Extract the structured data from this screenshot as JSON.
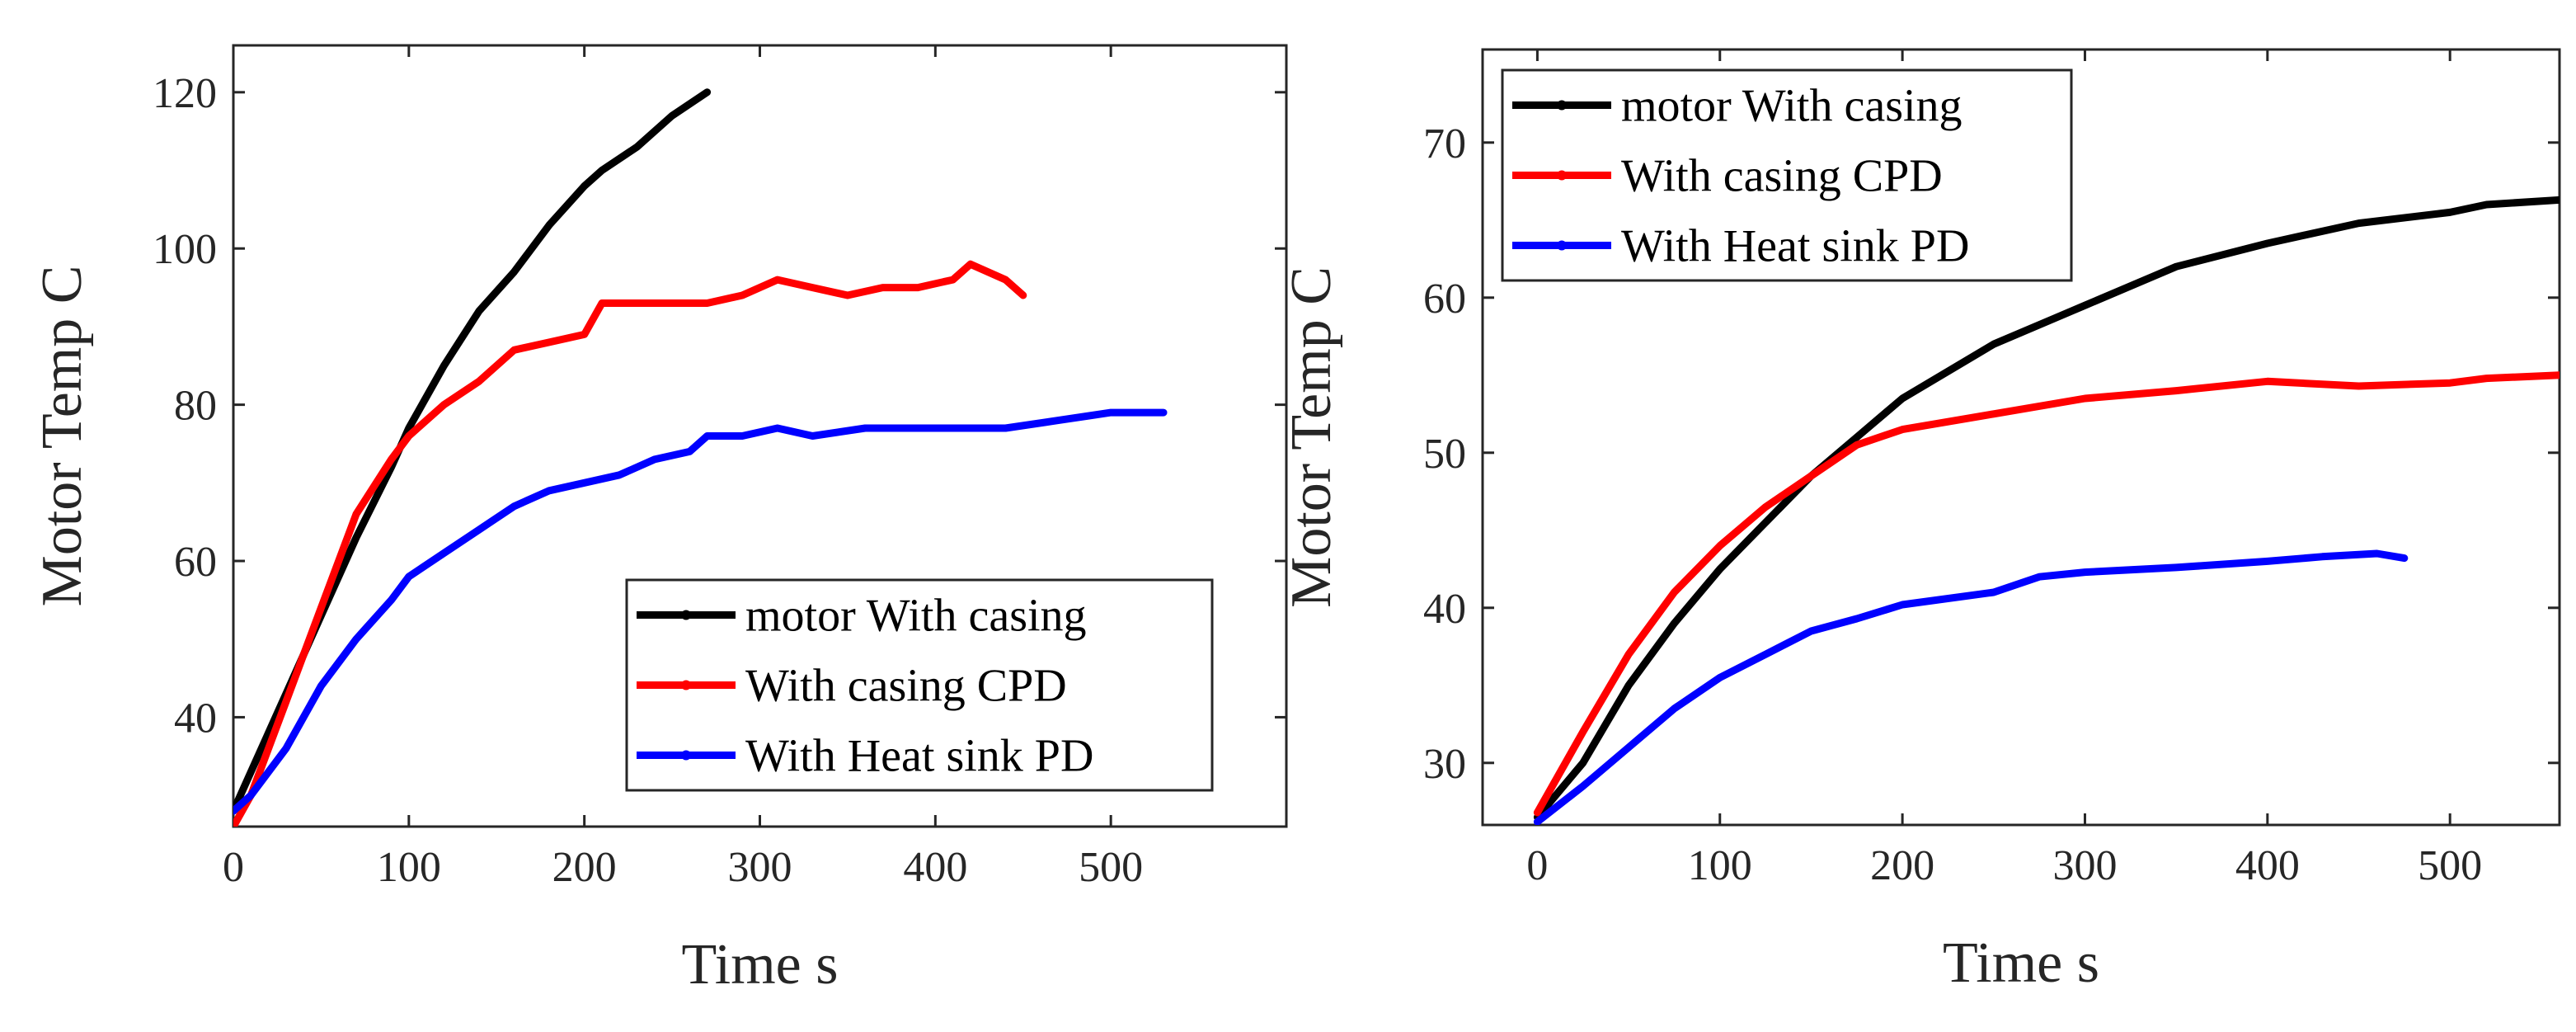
{
  "chart_data": [
    {
      "type": "line",
      "xlabel": "Time s",
      "ylabel": "Motor Temp C",
      "xlim": [
        0,
        600
      ],
      "ylim": [
        26,
        126
      ],
      "xticks": [
        0,
        100,
        200,
        300,
        400,
        500
      ],
      "yticks": [
        40,
        60,
        80,
        100,
        120
      ],
      "grid": false,
      "legend": "bottom-right",
      "series": [
        {
          "name": "motor With casing",
          "color": "#000000",
          "x": [
            0,
            10,
            20,
            30,
            50,
            70,
            90,
            100,
            120,
            140,
            160,
            180,
            200,
            210,
            230,
            250,
            270
          ],
          "y": [
            28,
            33,
            38,
            43,
            53,
            63,
            72,
            77,
            85,
            92,
            97,
            103,
            108,
            110,
            113,
            117,
            120
          ]
        },
        {
          "name": "With casing CPD",
          "color": "#ff0000",
          "x": [
            0,
            10,
            20,
            30,
            50,
            70,
            90,
            100,
            120,
            140,
            160,
            180,
            200,
            210,
            230,
            250,
            270,
            290,
            310,
            330,
            350,
            370,
            390,
            410,
            420,
            440,
            450
          ],
          "y": [
            26,
            30,
            36,
            42,
            54,
            66,
            73,
            76,
            80,
            83,
            87,
            88,
            89,
            93,
            93,
            93,
            93,
            94,
            96,
            95,
            94,
            95,
            95,
            96,
            98,
            96,
            94
          ]
        },
        {
          "name": "With Heat sink PD",
          "color": "#0000ff",
          "x": [
            0,
            10,
            20,
            30,
            50,
            70,
            90,
            100,
            120,
            140,
            160,
            180,
            200,
            220,
            240,
            260,
            270,
            290,
            310,
            330,
            360,
            400,
            440,
            470,
            500,
            530
          ],
          "y": [
            28,
            30,
            33,
            36,
            44,
            50,
            55,
            58,
            61,
            64,
            67,
            69,
            70,
            71,
            73,
            74,
            76,
            76,
            77,
            76,
            77,
            77,
            77,
            78,
            79,
            79
          ]
        }
      ]
    },
    {
      "type": "line",
      "xlabel": "Time s",
      "ylabel": "Motor Temp C",
      "xlim": [
        -30,
        560
      ],
      "ylim": [
        26,
        76
      ],
      "xticks": [
        0,
        100,
        200,
        300,
        400,
        500
      ],
      "yticks": [
        30,
        40,
        50,
        60,
        70
      ],
      "grid": false,
      "legend": "top-left",
      "series": [
        {
          "name": "motor With casing",
          "color": "#000000",
          "x": [
            0,
            25,
            50,
            75,
            100,
            125,
            150,
            175,
            200,
            250,
            300,
            350,
            400,
            450,
            500,
            520,
            560
          ],
          "y": [
            26.5,
            30,
            35,
            39,
            42.5,
            45.5,
            48.5,
            51,
            53.5,
            57,
            59.5,
            62,
            63.5,
            64.8,
            65.5,
            66,
            66.3
          ]
        },
        {
          "name": "With casing CPD",
          "color": "#ff0000",
          "x": [
            0,
            25,
            50,
            75,
            100,
            125,
            150,
            175,
            200,
            250,
            300,
            350,
            400,
            450,
            500,
            520,
            560
          ],
          "y": [
            26.8,
            32,
            37,
            41,
            44,
            46.5,
            48.5,
            50.5,
            51.5,
            52.5,
            53.5,
            54,
            54.6,
            54.3,
            54.5,
            54.8,
            55
          ]
        },
        {
          "name": "With Heat sink PD",
          "color": "#0000ff",
          "x": [
            0,
            25,
            50,
            75,
            100,
            125,
            150,
            175,
            200,
            250,
            275,
            300,
            350,
            400,
            430,
            460,
            475
          ],
          "y": [
            26.2,
            28.5,
            31,
            33.5,
            35.5,
            37,
            38.5,
            39.3,
            40.2,
            41,
            42,
            42.3,
            42.6,
            43,
            43.3,
            43.5,
            43.2
          ]
        }
      ]
    }
  ]
}
